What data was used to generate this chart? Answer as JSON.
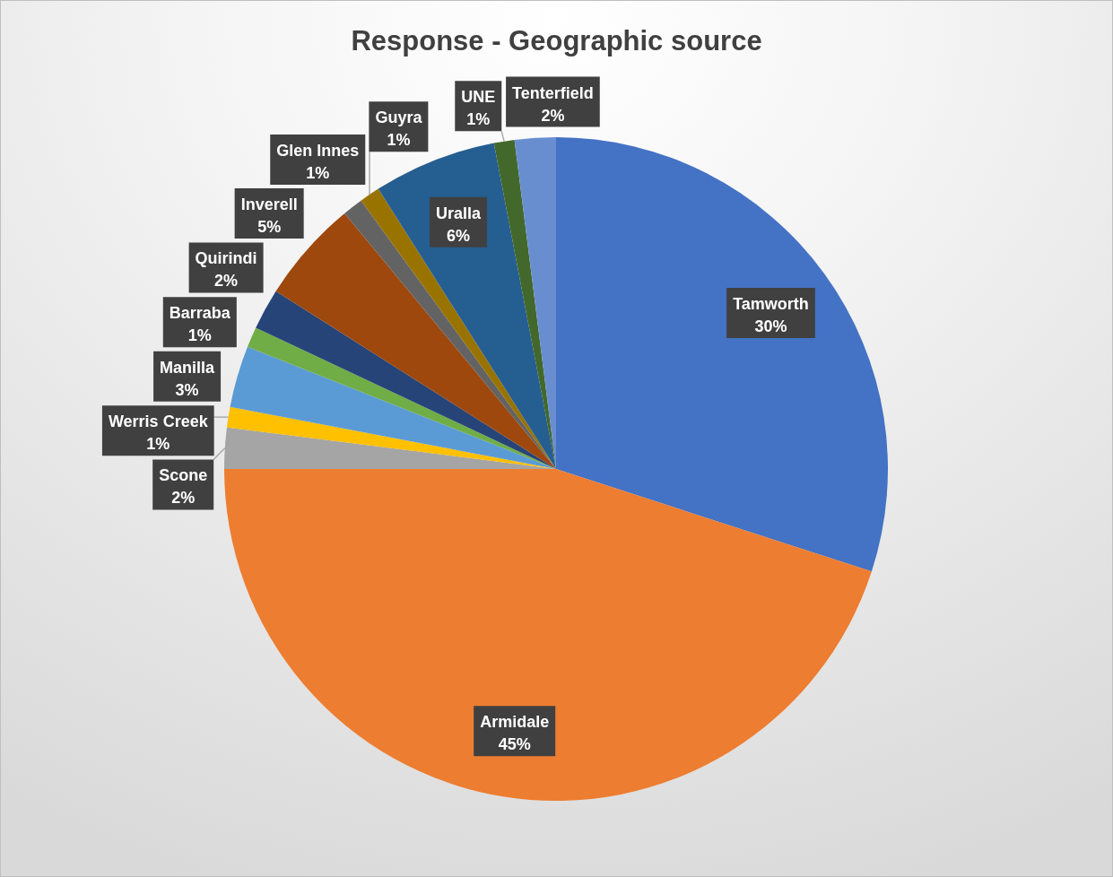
{
  "chart_data": {
    "type": "pie",
    "title": "Response - Geographic source",
    "categories": [
      "Tamworth",
      "Armidale",
      "Scone",
      "Werris Creek",
      "Manilla",
      "Barraba",
      "Quirindi",
      "Inverell",
      "Glen Innes",
      "Guyra",
      "Uralla",
      "UNE",
      "Tenterfield"
    ],
    "values": [
      30,
      45,
      2,
      1,
      3,
      1,
      2,
      5,
      1,
      1,
      6,
      1,
      2
    ],
    "value_labels": [
      "30%",
      "45%",
      "2%",
      "1%",
      "3%",
      "1%",
      "2%",
      "5%",
      "1%",
      "1%",
      "6%",
      "1%",
      "2%"
    ],
    "colors": [
      "#4472c4",
      "#ed7d31",
      "#a5a5a5",
      "#ffc000",
      "#5b9bd5",
      "#70ad47",
      "#264478",
      "#9e480e",
      "#636363",
      "#997300",
      "#255e91",
      "#43682b",
      "#698ed0"
    ]
  }
}
